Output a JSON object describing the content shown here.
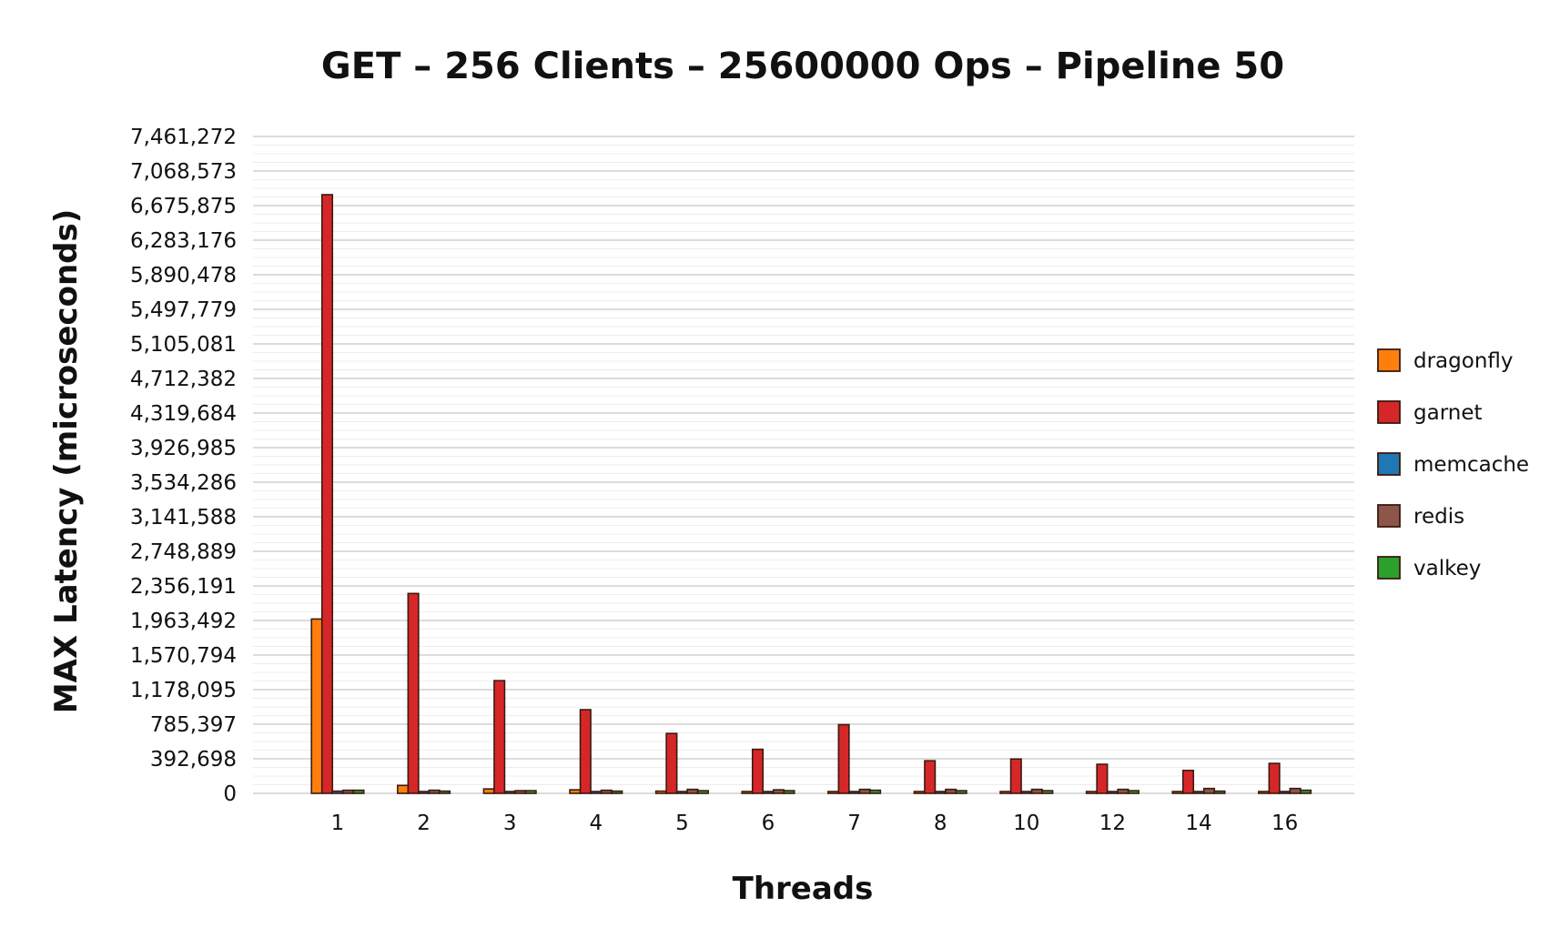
{
  "chart_data": {
    "type": "bar",
    "title": "GET – 256 Clients – 25600000 Ops – Pipeline 50",
    "xlabel": "Threads",
    "ylabel": "MAX Latency (microseconds)",
    "categories": [
      "1",
      "2",
      "3",
      "4",
      "5",
      "6",
      "7",
      "8",
      "10",
      "12",
      "14",
      "16"
    ],
    "y_ticks": [
      "0",
      "392,698",
      "785,397",
      "1,178,095",
      "1,570,794",
      "1,963,492",
      "2,356,191",
      "2,748,889",
      "3,141,588",
      "3,534,286",
      "3,926,985",
      "4,319,684",
      "4,712,382",
      "5,105,081",
      "5,497,779",
      "5,890,478",
      "6,283,176",
      "6,675,875",
      "7,068,573",
      "7,461,272"
    ],
    "ylim": [
      0,
      7461272
    ],
    "grid": true,
    "legend_position": "right",
    "series": [
      {
        "name": "dragonfly",
        "color": "#ff7f0e",
        "values": [
          1980000,
          90000,
          50000,
          40000,
          25000,
          20000,
          15000,
          12000,
          10000,
          10000,
          10000,
          10000
        ]
      },
      {
        "name": "garnet",
        "color": "#d62728",
        "values": [
          6800000,
          2270000,
          1280000,
          950000,
          680000,
          500000,
          780000,
          370000,
          390000,
          330000,
          260000,
          340000
        ]
      },
      {
        "name": "memcache",
        "color": "#1f77b4",
        "values": [
          25000,
          20000,
          18000,
          18000,
          18000,
          18000,
          18000,
          18000,
          18000,
          18000,
          18000,
          18000
        ]
      },
      {
        "name": "redis",
        "color": "#8c564b",
        "values": [
          35000,
          35000,
          30000,
          35000,
          45000,
          40000,
          45000,
          45000,
          45000,
          45000,
          55000,
          55000
        ]
      },
      {
        "name": "valkey",
        "color": "#2ca02c",
        "values": [
          35000,
          25000,
          30000,
          25000,
          30000,
          30000,
          35000,
          30000,
          30000,
          30000,
          25000,
          35000
        ]
      }
    ]
  }
}
